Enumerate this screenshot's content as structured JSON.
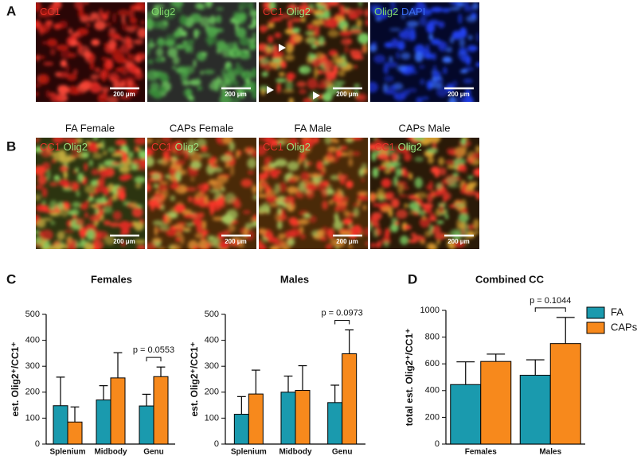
{
  "panel_labels": [
    "A",
    "B",
    "C",
    "D"
  ],
  "scale_bar": "200 μm",
  "panel_a": {
    "labels": [
      [
        {
          "text": "CC1",
          "color": "#e8322a"
        }
      ],
      [
        {
          "text": "Olig2",
          "color": "#7fd36a"
        }
      ],
      [
        {
          "text": "CC1",
          "color": "#e8322a"
        },
        {
          "text": "Olig2",
          "color": "#9be07e"
        }
      ],
      [
        {
          "text": "Olig2",
          "color": "#7fd36a"
        },
        {
          "text": "DAPI",
          "color": "#3a6cf0"
        }
      ]
    ]
  },
  "panel_b": {
    "columns": [
      "FA Female",
      "CAPs Female",
      "FA Male",
      "CAPs Male"
    ],
    "label": [
      {
        "text": "CC1",
        "color": "#e8322a"
      },
      {
        "text": "Olig2",
        "color": "#9be07e"
      }
    ]
  },
  "chart_data": [
    {
      "type": "bar",
      "title": "Females",
      "ylabel": "est. Olig2⁺/CC1⁺",
      "categories": [
        "Splenium",
        "Midbody",
        "Genu"
      ],
      "series": [
        {
          "color": "#1a9aae",
          "values": [
            148,
            170,
            147
          ],
          "errors": [
            110,
            55,
            45
          ]
        },
        {
          "color": "#f7891c",
          "values": [
            85,
            255,
            260
          ],
          "errors": [
            58,
            97,
            37
          ]
        }
      ],
      "annotation": "p = 0.0553",
      "ylim": [
        0,
        500
      ],
      "yticks": [
        0,
        100,
        200,
        300,
        400,
        500
      ]
    },
    {
      "type": "bar",
      "title": "Males",
      "ylabel": "est. Olig2⁺/CC1⁺",
      "categories": [
        "Splenium",
        "Midbody",
        "Genu"
      ],
      "series": [
        {
          "color": "#1a9aae",
          "values": [
            115,
            200,
            160
          ],
          "errors": [
            68,
            62,
            67
          ]
        },
        {
          "color": "#f7891c",
          "values": [
            193,
            207,
            348
          ],
          "errors": [
            92,
            95,
            92
          ]
        }
      ],
      "annotation": "p = 0.0973",
      "ylim": [
        0,
        500
      ],
      "yticks": [
        0,
        100,
        200,
        300,
        400,
        500
      ]
    },
    {
      "type": "bar",
      "title": "Combined CC",
      "ylabel": "total est. Olig2⁺/CC1⁺",
      "categories": [
        "Females",
        "Males"
      ],
      "series": [
        {
          "name": "FA",
          "color": "#1a9aae",
          "values": [
            445,
            515
          ],
          "errors": [
            170,
            115
          ]
        },
        {
          "name": "CAPs",
          "color": "#f7891c",
          "values": [
            618,
            752
          ],
          "errors": [
            55,
            195
          ]
        }
      ],
      "annotation": "p = 0.1044",
      "legend": "upper right",
      "ylim": [
        0,
        1000
      ],
      "yticks": [
        0,
        200,
        400,
        600,
        800,
        1000
      ]
    }
  ]
}
